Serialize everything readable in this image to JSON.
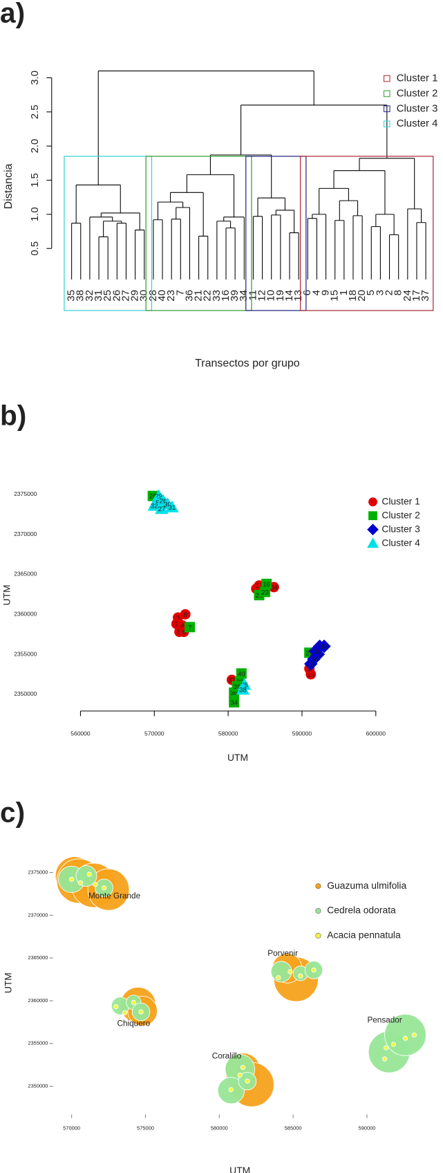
{
  "chart_data": [
    {
      "type": "dendrogram",
      "panel_label": "a)",
      "ylabel": "Distancia",
      "xlabel": "Transectos por grupo",
      "ylim": [
        0.5,
        3.0
      ],
      "yticks": [
        0.5,
        {
          "value": 1,
          "label": "1.0"
        },
        1.5,
        {
          "value": 2,
          "label": "2.0"
        },
        2.5,
        {
          "value": 3,
          "label": "3.0"
        }
      ],
      "box_top": 1.85,
      "series": [
        {
          "name": "Cluster 1",
          "color": "#b03038"
        },
        {
          "name": "Cluster 2",
          "color": "#3aa13a"
        },
        {
          "name": "Cluster 3",
          "color": "#2b2b8c"
        },
        {
          "name": "Cluster 4",
          "color": "#40d0d8"
        }
      ],
      "tree": {
        "height": 3.1,
        "children": [
          {
            "height": 1.43,
            "color": "#40d0d8",
            "children": [
              {
                "height": 0.87,
                "children": [
                  {
                    "label": "35"
                  },
                  {
                    "label": "38"
                  }
                ]
              },
              {
                "height": 1.02,
                "children": [
                  {
                    "height": 0.96,
                    "children": [
                      {
                        "label": "32"
                      },
                      {
                        "height": 0.9,
                        "children": [
                          {
                            "height": 0.67,
                            "children": [
                              {
                                "label": "31"
                              },
                              {
                                "label": "25"
                              }
                            ]
                          },
                          {
                            "height": 0.87,
                            "children": [
                              {
                                "label": "26"
                              },
                              {
                                "label": "27"
                              }
                            ]
                          }
                        ]
                      }
                    ]
                  },
                  {
                    "height": 0.77,
                    "children": [
                      {
                        "label": "29"
                      },
                      {
                        "label": "30"
                      }
                    ]
                  }
                ]
              }
            ]
          },
          {
            "height": 2.6,
            "children": [
              {
                "height": 1.87,
                "children": [
                  {
                    "height": 1.58,
                    "color": "#3aa13a",
                    "children": [
                      {
                        "height": 1.32,
                        "children": [
                          {
                            "height": 1.18,
                            "children": [
                              {
                                "height": 0.92,
                                "children": [
                                  {
                                    "label": "28"
                                  },
                                  {
                                    "label": "40"
                                  }
                                ]
                              },
                              {
                                "height": 1.1,
                                "children": [
                                  {
                                    "height": 0.93,
                                    "children": [
                                      {
                                        "label": "23"
                                      },
                                      {
                                        "label": "7"
                                      }
                                    ]
                                  },
                                  {
                                    "label": "36"
                                  }
                                ]
                              }
                            ]
                          },
                          {
                            "height": 0.68,
                            "children": [
                              {
                                "label": "21"
                              },
                              {
                                "label": "22"
                              }
                            ]
                          }
                        ]
                      },
                      {
                        "height": 0.96,
                        "children": [
                          {
                            "height": 0.9,
                            "children": [
                              {
                                "label": "33"
                              },
                              {
                                "height": 0.8,
                                "children": [
                                  {
                                    "label": "16"
                                  },
                                  {
                                    "label": "39"
                                  }
                                ]
                              }
                            ]
                          },
                          {
                            "label": "34"
                          }
                        ]
                      }
                    ]
                  },
                  {
                    "height": 1.24,
                    "color": "#2b2b8c",
                    "children": [
                      {
                        "height": 0.97,
                        "children": [
                          {
                            "label": "11"
                          },
                          {
                            "label": "12"
                          }
                        ]
                      },
                      {
                        "height": 1.06,
                        "children": [
                          {
                            "height": 0.99,
                            "children": [
                              {
                                "label": "10"
                              },
                              {
                                "label": "19"
                              }
                            ]
                          },
                          {
                            "height": 0.73,
                            "children": [
                              {
                                "label": "14"
                              },
                              {
                                "label": "13"
                              }
                            ]
                          }
                        ]
                      }
                    ]
                  }
                ]
              },
              {
                "height": 1.82,
                "color": "#b03038",
                "children": [
                  {
                    "height": 1.64,
                    "children": [
                      {
                        "height": 1.38,
                        "children": [
                          {
                            "height": 1.0,
                            "children": [
                              {
                                "height": 0.94,
                                "children": [
                                  {
                                    "label": "6"
                                  },
                                  {
                                    "label": "4"
                                  }
                                ]
                              },
                              {
                                "label": "9"
                              }
                            ]
                          },
                          {
                            "height": 1.2,
                            "children": [
                              {
                                "height": 0.91,
                                "children": [
                                  {
                                    "label": "15"
                                  },
                                  {
                                    "label": "1"
                                  }
                                ]
                              },
                              {
                                "height": 0.98,
                                "children": [
                                  {
                                    "label": "18"
                                  },
                                  {
                                    "label": "20"
                                  }
                                ]
                              }
                            ]
                          }
                        ]
                      },
                      {
                        "height": 1.0,
                        "children": [
                          {
                            "height": 0.82,
                            "children": [
                              {
                                "label": "5"
                              },
                              {
                                "label": "3"
                              }
                            ]
                          },
                          {
                            "height": 0.7,
                            "children": [
                              {
                                "label": "2"
                              },
                              {
                                "label": "8"
                              }
                            ]
                          }
                        ]
                      }
                    ]
                  },
                  {
                    "height": 1.08,
                    "children": [
                      {
                        "label": "24"
                      },
                      {
                        "height": 0.88,
                        "children": [
                          {
                            "label": "17"
                          },
                          {
                            "label": "37"
                          }
                        ]
                      }
                    ]
                  }
                ]
              }
            ]
          }
        ]
      }
    },
    {
      "type": "scatter",
      "panel_label": "b)",
      "xlabel": "UTM",
      "ylabel": "UTM",
      "xlim": [
        558000,
        602000
      ],
      "xticks": [
        560000,
        570000,
        580000,
        590000,
        600000
      ],
      "ylim": [
        2348000,
        2376000
      ],
      "yticks": [
        2350000,
        2355000,
        2360000,
        2365000,
        2370000,
        2375000
      ],
      "series": [
        {
          "name": "Cluster 1",
          "color": "#e00000",
          "shape": "circle",
          "x": [
            573200,
            574200,
            573000,
            573800,
            573400,
            574000,
            583800,
            585000,
            584600,
            586200,
            584200,
            591200,
            591000,
            580500
          ],
          "y": [
            2359600,
            2360000,
            2358800,
            2358600,
            2357800,
            2357800,
            2363200,
            2363400,
            2362800,
            2363400,
            2363600,
            2352500,
            2353200,
            2351800
          ],
          "labels": [
            "3",
            "8",
            "2",
            "4",
            "5",
            "6",
            "1",
            "18",
            "20",
            "24",
            "17",
            "15",
            "9",
            "37"
          ]
        },
        {
          "name": "Cluster 2",
          "color": "#00b000",
          "shape": "square",
          "x": [
            569800,
            574800,
            585200,
            584200,
            585000,
            591000,
            581800,
            581600,
            580800,
            580800,
            581200
          ],
          "y": [
            2374800,
            2358400,
            2363800,
            2362400,
            2362800,
            2355200,
            2352600,
            2351600,
            2350200,
            2349000,
            2351000
          ],
          "labels": [
            "28",
            "7",
            "16",
            "21",
            "23",
            "22",
            "40",
            "33",
            "36",
            "34",
            "39"
          ]
        },
        {
          "name": "Cluster 3",
          "color": "#0000d0",
          "shape": "diamond",
          "x": [
            592400,
            593000,
            592200,
            591600,
            591200,
            591800
          ],
          "y": [
            2356000,
            2356000,
            2355000,
            2354400,
            2353800,
            2355400
          ],
          "labels": [
            "14",
            "13",
            "12",
            "10",
            "11",
            "19"
          ]
        },
        {
          "name": "Cluster 4",
          "color": "#00e0e8",
          "shape": "triangle",
          "x": [
            570600,
            570200,
            571200,
            571800,
            572400,
            570000,
            571000,
            582200,
            582000
          ],
          "y": [
            2374800,
            2374000,
            2374200,
            2373800,
            2373400,
            2373600,
            2373200,
            2351200,
            2350600
          ],
          "labels": [
            "29",
            "25",
            "26",
            "30",
            "31",
            "32",
            "27",
            "35",
            "38"
          ]
        }
      ]
    },
    {
      "type": "bubble",
      "panel_label": "c)",
      "xlabel": "UTM",
      "ylabel": "UTM",
      "xlim": [
        568000,
        594500
      ],
      "xticks": [
        570000,
        575000,
        580000,
        585000,
        590000
      ],
      "ylim": [
        2348000,
        2376000
      ],
      "yticks": [
        2350000,
        2355000,
        2360000,
        2365000,
        2370000,
        2375000
      ],
      "series": [
        {
          "name": "Guazuma ulmifolia",
          "color": "#f7a21b",
          "x": [
            570200,
            570500,
            571500,
            572500,
            574500,
            574800,
            585200,
            584600,
            581600,
            582200
          ],
          "y": [
            2374600,
            2374000,
            2373500,
            2373000,
            2359500,
            2358800,
            2362500,
            2363800,
            2351800,
            2350200
          ],
          "size": [
            1300,
            1500,
            1500,
            1400,
            1200,
            1000,
            1500,
            1000,
            1200,
            1500
          ]
        },
        {
          "name": "Cedrela odorata",
          "color": "#98e698",
          "x": [
            570000,
            571000,
            572200,
            573300,
            574200,
            574700,
            584200,
            585500,
            586400,
            591500,
            592600,
            581400,
            580800,
            581900
          ],
          "y": [
            2374200,
            2374600,
            2373200,
            2359400,
            2359800,
            2358700,
            2363400,
            2363200,
            2363600,
            2354000,
            2356000,
            2352000,
            2349500,
            2350600
          ],
          "size": [
            900,
            700,
            600,
            600,
            500,
            600,
            700,
            500,
            600,
            1400,
            1400,
            1000,
            900,
            600
          ]
        },
        {
          "name": "Acacia pennatula",
          "color": "#f5f542",
          "x": [
            570000,
            570600,
            571600,
            572200,
            571200,
            573600,
            574200,
            574700,
            573000,
            584000,
            584800,
            585500,
            586400,
            591300,
            591800,
            592600,
            593200,
            591200,
            581400,
            581600,
            580800,
            581900
          ],
          "y": [
            2374200,
            2373800,
            2373600,
            2373200,
            2374800,
            2358600,
            2359800,
            2358700,
            2359300,
            2362700,
            2363400,
            2362900,
            2363600,
            2354500,
            2354900,
            2355600,
            2356000,
            2353200,
            2351300,
            2352200,
            2349600,
            2350600
          ],
          "size": [
            150,
            150,
            150,
            150,
            150,
            150,
            150,
            150,
            150,
            150,
            150,
            150,
            150,
            150,
            150,
            150,
            150,
            150,
            150,
            150,
            150,
            150
          ]
        }
      ],
      "annotations": [
        {
          "text": "Monte Grande",
          "x": 572900,
          "y": 2372200
        },
        {
          "text": "Chiquero",
          "x": 574200,
          "y": 2357300
        },
        {
          "text": "Porvenir",
          "x": 584300,
          "y": 2365500
        },
        {
          "text": "Coralillo",
          "x": 580500,
          "y": 2353500
        },
        {
          "text": "Pensador",
          "x": 591200,
          "y": 2357700
        }
      ]
    }
  ]
}
